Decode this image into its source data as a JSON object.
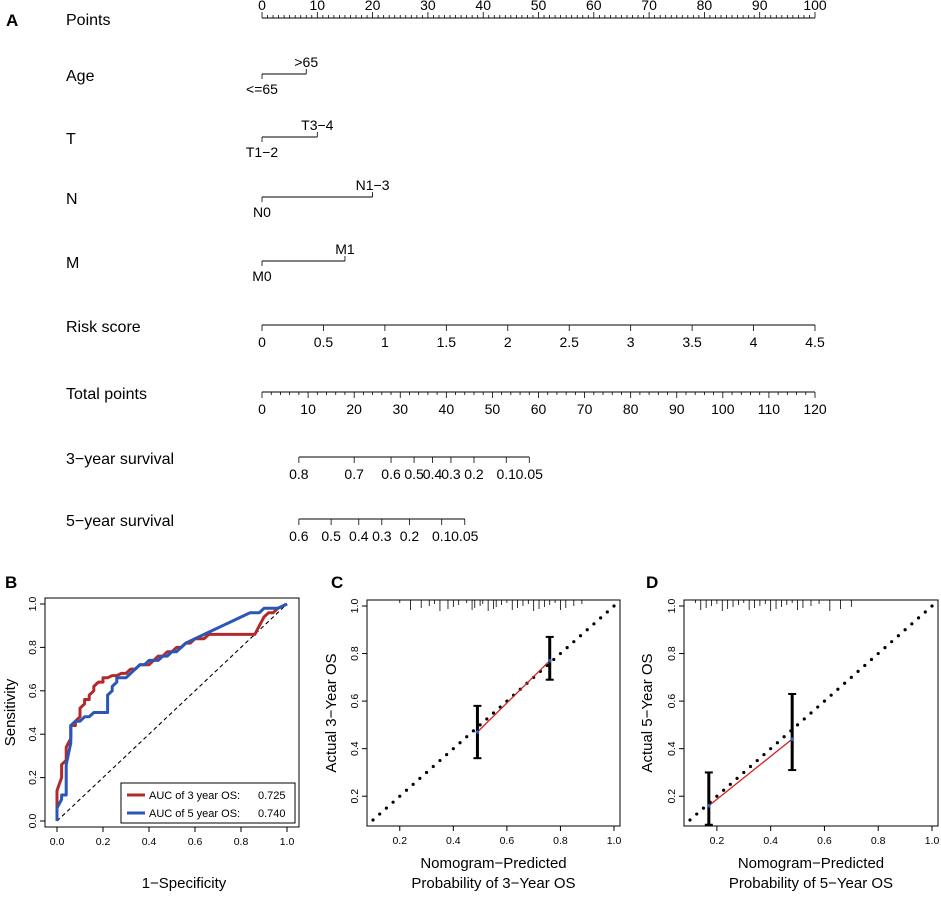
{
  "chart_data": [
    {
      "panel": "A",
      "type": "nomogram",
      "rows": [
        {
          "label": "Points",
          "kind": "scale",
          "range": [
            0,
            100
          ],
          "ticks": [
            0,
            10,
            20,
            30,
            40,
            50,
            60,
            70,
            80,
            90,
            100
          ],
          "tick_labels": [
            "0",
            "10",
            "20",
            "30",
            "40",
            "50",
            "60",
            "70",
            "80",
            "90",
            "100"
          ],
          "minor_step": 1
        },
        {
          "label": "Age",
          "kind": "categorical",
          "levels": [
            {
              "name": "<=65",
              "points": 0
            },
            {
              "name": ">65",
              "points": 8
            }
          ]
        },
        {
          "label": "T",
          "kind": "categorical",
          "levels": [
            {
              "name": "T1−2",
              "points": 0
            },
            {
              "name": "T3−4",
              "points": 10
            }
          ]
        },
        {
          "label": "N",
          "kind": "categorical",
          "levels": [
            {
              "name": "N0",
              "points": 0
            },
            {
              "name": "N1−3",
              "points": 20
            }
          ]
        },
        {
          "label": "M",
          "kind": "categorical",
          "levels": [
            {
              "name": "M0",
              "points": 0
            },
            {
              "name": "M1",
              "points": 15
            }
          ]
        },
        {
          "label": "Risk score",
          "kind": "scale",
          "ticks_values": [
            0,
            0.5,
            1,
            1.5,
            2,
            2.5,
            3,
            3.5,
            4,
            4.5
          ],
          "tick_labels": [
            "0",
            "0.5",
            "1",
            "1.5",
            "2",
            "2.5",
            "3",
            "3.5",
            "4",
            "4.5"
          ],
          "points_at_min": 0,
          "points_at_max": 100
        },
        {
          "label": "Total points",
          "kind": "scale",
          "range": [
            0,
            120
          ],
          "ticks": [
            0,
            10,
            20,
            30,
            40,
            50,
            60,
            70,
            80,
            90,
            100,
            110,
            120
          ],
          "tick_labels": [
            "0",
            "10",
            "20",
            "30",
            "40",
            "50",
            "60",
            "70",
            "80",
            "90",
            "100",
            "110",
            "120"
          ],
          "minor_step": 2
        },
        {
          "label": "3−year survival",
          "kind": "survival",
          "ticks_total_points": [
            8,
            20,
            28,
            33,
            37,
            41,
            46,
            53,
            58
          ],
          "tick_labels": [
            "0.8",
            "0.7",
            "0.6",
            "0.5",
            "0.4",
            "0.3",
            "0.2",
            "0.1",
            "0.05"
          ]
        },
        {
          "label": "5−year survival",
          "kind": "survival",
          "ticks_total_points": [
            8,
            15,
            21,
            26,
            32,
            39,
            44
          ],
          "tick_labels": [
            "0.6",
            "0.5",
            "0.4",
            "0.3",
            "0.2",
            "0.1",
            "0.05"
          ]
        }
      ]
    },
    {
      "panel": "B",
      "type": "line",
      "title": "",
      "xlabel": "1−Specificity",
      "ylabel": "Sensitivity",
      "xlim": [
        0,
        1
      ],
      "ylim": [
        0,
        1
      ],
      "ticks": [
        0,
        0.2,
        0.4,
        0.6,
        0.8,
        1
      ],
      "tick_labels": [
        "0.0",
        "0.2",
        "0.4",
        "0.6",
        "0.8",
        "1.0"
      ],
      "series": [
        {
          "name": "AUC of 3 year OS:",
          "auc": "0.725",
          "color": "#b22a2a",
          "x": [
            0,
            0,
            0.02,
            0.02,
            0.04,
            0.04,
            0.06,
            0.06,
            0.08,
            0.08,
            0.1,
            0.1,
            0.12,
            0.12,
            0.14,
            0.14,
            0.16,
            0.16,
            0.18,
            0.2,
            0.2,
            0.22,
            0.24,
            0.26,
            0.28,
            0.3,
            0.32,
            0.34,
            0.36,
            0.38,
            0.4,
            0.42,
            0.44,
            0.46,
            0.48,
            0.5,
            0.52,
            0.54,
            0.56,
            0.58,
            0.6,
            0.62,
            0.64,
            0.66,
            0.7,
            0.74,
            0.78,
            0.82,
            0.86,
            0.88,
            0.9,
            0.92,
            0.94,
            0.96,
            1.0
          ],
          "y": [
            0,
            0.14,
            0.2,
            0.26,
            0.28,
            0.34,
            0.38,
            0.44,
            0.44,
            0.46,
            0.48,
            0.52,
            0.54,
            0.56,
            0.56,
            0.58,
            0.6,
            0.62,
            0.64,
            0.64,
            0.66,
            0.66,
            0.67,
            0.67,
            0.68,
            0.68,
            0.7,
            0.7,
            0.72,
            0.72,
            0.72,
            0.74,
            0.76,
            0.76,
            0.78,
            0.78,
            0.8,
            0.8,
            0.82,
            0.82,
            0.84,
            0.84,
            0.84,
            0.86,
            0.86,
            0.86,
            0.86,
            0.86,
            0.86,
            0.9,
            0.94,
            0.96,
            0.96,
            0.98,
            1.0
          ]
        },
        {
          "name": "AUC of 5 year OS:",
          "auc": "0.740",
          "color": "#2a56b8",
          "x": [
            0,
            0,
            0.02,
            0.02,
            0.04,
            0.04,
            0.06,
            0.06,
            0.08,
            0.1,
            0.12,
            0.14,
            0.16,
            0.16,
            0.18,
            0.2,
            0.22,
            0.22,
            0.24,
            0.24,
            0.26,
            0.26,
            0.28,
            0.3,
            0.32,
            0.34,
            0.36,
            0.38,
            0.4,
            0.42,
            0.44,
            0.46,
            0.48,
            0.5,
            0.52,
            0.54,
            0.56,
            0.6,
            0.64,
            0.68,
            0.72,
            0.76,
            0.8,
            0.84,
            0.88,
            0.9,
            0.92,
            0.94,
            0.96,
            1.0
          ],
          "y": [
            0,
            0.06,
            0.1,
            0.12,
            0.12,
            0.26,
            0.36,
            0.44,
            0.46,
            0.46,
            0.48,
            0.48,
            0.5,
            0.5,
            0.5,
            0.5,
            0.5,
            0.58,
            0.6,
            0.62,
            0.64,
            0.66,
            0.66,
            0.66,
            0.68,
            0.7,
            0.72,
            0.72,
            0.74,
            0.74,
            0.74,
            0.76,
            0.76,
            0.78,
            0.78,
            0.8,
            0.82,
            0.84,
            0.86,
            0.88,
            0.9,
            0.92,
            0.94,
            0.96,
            0.96,
            0.98,
            0.98,
            0.98,
            0.98,
            1.0
          ]
        }
      ]
    },
    {
      "panel": "C",
      "type": "calibration",
      "xlabel": "Nomogram−Predicted\nProbability of 3−Year OS",
      "xlabel_lines": [
        "Nomogram−Predicted",
        "Probability of 3−Year OS"
      ],
      "ylabel": "Actual 3−Year OS",
      "xlim": [
        0.1,
        1.0
      ],
      "ylim": [
        0.1,
        1.0
      ],
      "x_ticks": [
        0.2,
        0.4,
        0.6,
        0.8,
        1.0
      ],
      "x_tick_labels": [
        "0.2",
        "0.4",
        "0.6",
        "0.8",
        "1.0"
      ],
      "y_ticks": [
        0.2,
        0.4,
        0.6,
        0.8,
        1.0
      ],
      "y_tick_labels": [
        "0.2",
        "0.4",
        "0.6",
        "0.8",
        "1.0"
      ],
      "points": [
        {
          "x": 0.49,
          "y": 0.47,
          "lo": 0.36,
          "hi": 0.58
        },
        {
          "x": 0.76,
          "y": 0.77,
          "lo": 0.69,
          "hi": 0.87
        }
      ],
      "rug": [
        0.2,
        0.24,
        0.28,
        0.31,
        0.33,
        0.35,
        0.38,
        0.4,
        0.42,
        0.45,
        0.47,
        0.48,
        0.5,
        0.51,
        0.53,
        0.55,
        0.56,
        0.58,
        0.6,
        0.62,
        0.64,
        0.66,
        0.68,
        0.7,
        0.72,
        0.74,
        0.76,
        0.78,
        0.8,
        0.82,
        0.85,
        0.88
      ]
    },
    {
      "panel": "D",
      "type": "calibration",
      "xlabel": "Nomogram−Predicted\nProbability of 5−Year OS",
      "xlabel_lines": [
        "Nomogram−Predicted",
        "Probability of 5−Year OS"
      ],
      "ylabel": "Actual 5−Year OS",
      "xlim": [
        0.1,
        1.0
      ],
      "ylim": [
        0.1,
        1.0
      ],
      "x_ticks": [
        0.2,
        0.4,
        0.6,
        0.8,
        1.0
      ],
      "x_tick_labels": [
        "0.2",
        "0.4",
        "0.6",
        "0.8",
        "1.0"
      ],
      "y_ticks": [
        0.2,
        0.4,
        0.6,
        0.8,
        1.0
      ],
      "y_tick_labels": [
        "0.2",
        "0.4",
        "0.6",
        "0.8",
        "1.0"
      ],
      "points": [
        {
          "x": 0.17,
          "y": 0.16,
          "lo": 0.08,
          "hi": 0.3
        },
        {
          "x": 0.48,
          "y": 0.44,
          "lo": 0.31,
          "hi": 0.63
        }
      ],
      "rug": [
        0.12,
        0.14,
        0.16,
        0.18,
        0.2,
        0.22,
        0.24,
        0.26,
        0.28,
        0.3,
        0.32,
        0.34,
        0.36,
        0.38,
        0.4,
        0.42,
        0.44,
        0.46,
        0.48,
        0.5,
        0.52,
        0.55,
        0.58,
        0.62,
        0.66,
        0.7
      ]
    }
  ],
  "panel_labels": {
    "a": "A",
    "b": "B",
    "c": "C",
    "d": "D"
  }
}
